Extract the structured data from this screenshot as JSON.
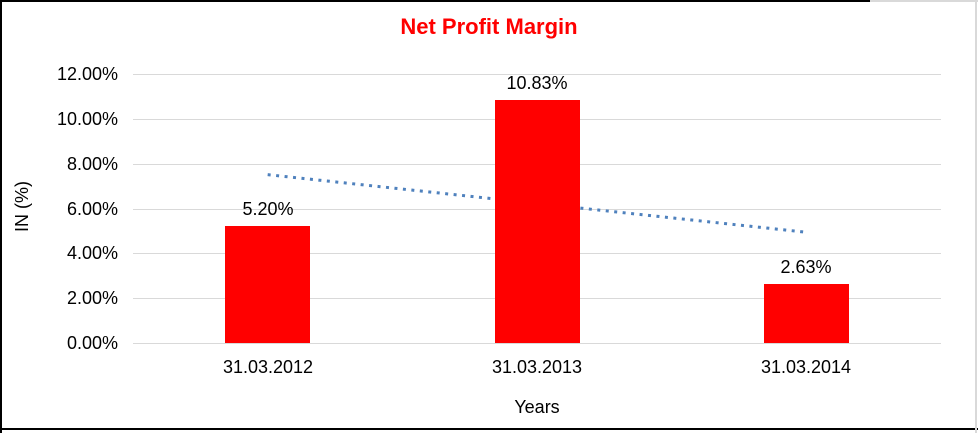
{
  "chart_data": {
    "type": "bar",
    "title": "Net Profit Margin",
    "categories": [
      "31.03.2012",
      "31.03.2013",
      "31.03.2014"
    ],
    "values": [
      5.2,
      10.83,
      2.63
    ],
    "data_labels": [
      "5.20%",
      "10.83%",
      "2.63%"
    ],
    "xlabel": "Years",
    "ylabel": "IN (%)",
    "ylim": [
      0,
      12
    ],
    "ytick_step": 2,
    "ytick_labels": [
      "0.00%",
      "2.00%",
      "4.00%",
      "6.00%",
      "8.00%",
      "10.00%",
      "12.00%"
    ],
    "grid": true,
    "legend": "none",
    "trendline": {
      "type": "linear",
      "style": "dotted",
      "start_value": 7.51,
      "end_value": 4.94,
      "start_category_index": 0,
      "end_category_index": 2
    },
    "colors": {
      "bar": "#ff0000",
      "title": "#ff0000",
      "gridline": "#d9d9d9",
      "trendline": "#4f81bd",
      "text": "#000000",
      "frame_border": "#000000",
      "frame_edge": "#d9d9d9"
    }
  }
}
